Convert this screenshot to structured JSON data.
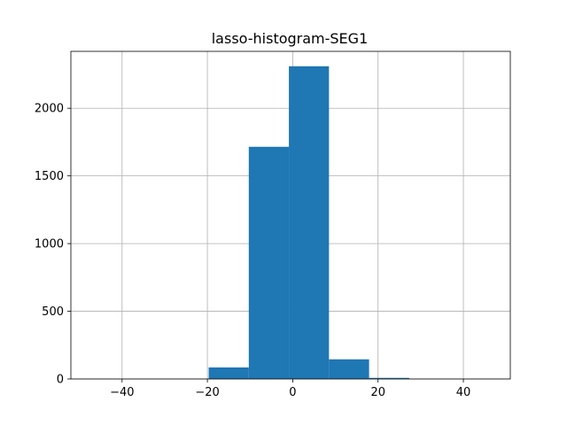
{
  "chart_data": {
    "type": "bar",
    "title": "lasso-histogram-SEG1",
    "xlabel": "",
    "ylabel": "",
    "xlim": [
      -52,
      51
    ],
    "ylim": [
      0,
      2420
    ],
    "xticks": [
      -40,
      -20,
      0,
      20,
      40
    ],
    "xtick_labels": [
      "−40",
      "−20",
      "0",
      "20",
      "40"
    ],
    "yticks": [
      0,
      500,
      1000,
      1500,
      2000
    ],
    "ytick_labels": [
      "0",
      "500",
      "1000",
      "1500",
      "2000"
    ],
    "grid": true,
    "legend": "none",
    "bar_color": "#1f77b4",
    "bins": [
      {
        "x0": -47.9,
        "x1": -38.5,
        "count": 0
      },
      {
        "x0": -38.5,
        "x1": -29.1,
        "count": 0
      },
      {
        "x0": -29.1,
        "x1": -19.7,
        "count": 0
      },
      {
        "x0": -19.7,
        "x1": -10.3,
        "count": 85
      },
      {
        "x0": -10.3,
        "x1": -0.9,
        "count": 1715
      },
      {
        "x0": -0.9,
        "x1": 8.5,
        "count": 2310
      },
      {
        "x0": 8.5,
        "x1": 17.9,
        "count": 145
      },
      {
        "x0": 17.9,
        "x1": 27.3,
        "count": 8
      },
      {
        "x0": 27.3,
        "x1": 36.7,
        "count": 0
      },
      {
        "x0": 36.7,
        "x1": 46.1,
        "count": 0
      }
    ]
  }
}
